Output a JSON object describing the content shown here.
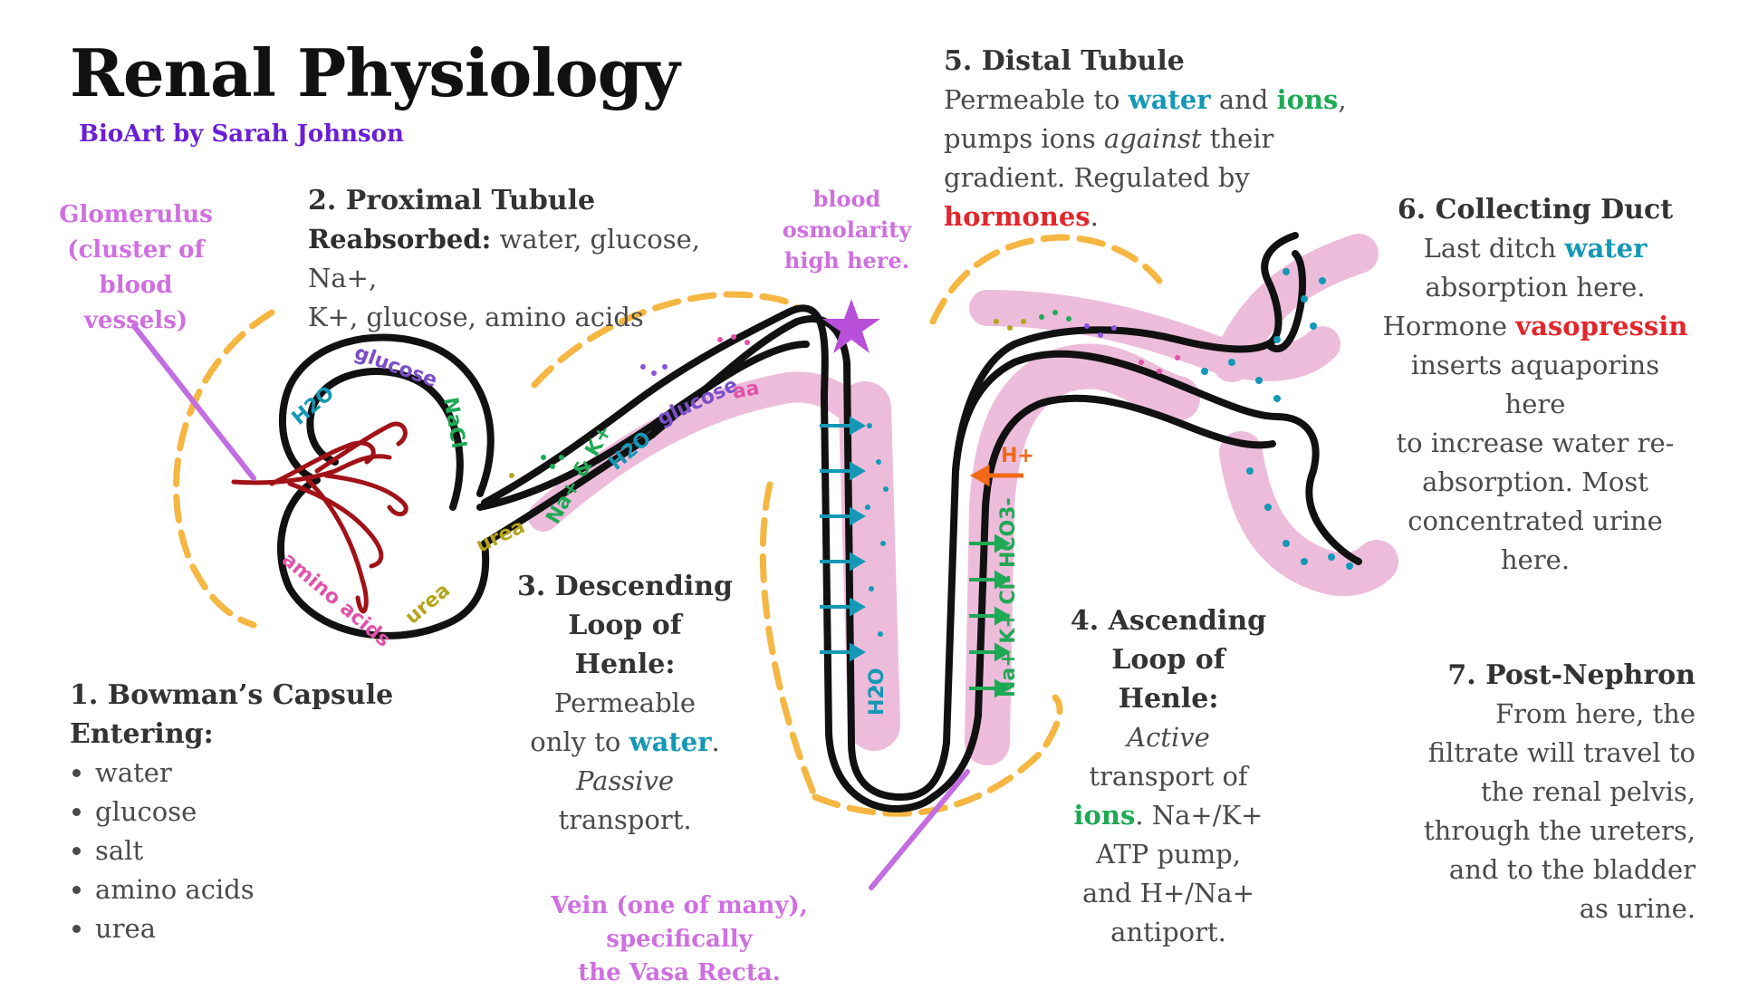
{
  "title": "Renal Physiology",
  "byline": "BioArt by Sarah Johnson",
  "glomerulus_label": [
    "Glomerulus",
    "(cluster of blood",
    "vessels)"
  ],
  "step1": {
    "heading": "1. Bowman’s Capsule",
    "subheading": "Entering:",
    "items": [
      "water",
      "glucose",
      "salt",
      "amino acids",
      "urea"
    ]
  },
  "step2": {
    "heading": "2. Proximal Tubule",
    "reabsorbed_label": "Reabsorbed:",
    "reabsorbed_text": "water, glucose, Na+,",
    "line2": "K+, glucose, amino acids"
  },
  "osmolarity_note": [
    "blood",
    "osmolarity",
    "high here."
  ],
  "step3": {
    "heading": [
      "3. Descending",
      "Loop of",
      "Henle:"
    ],
    "line1": "Permeable",
    "line2_pre": "only to",
    "line2_key": "water",
    "line2_post": ".",
    "line3": "Passive",
    "line4": "transport."
  },
  "step4": {
    "heading": [
      "4. Ascending",
      "Loop of",
      "Henle:"
    ],
    "line1": "Active",
    "line2": "transport of",
    "line3_key": "ions",
    "line3_post": ". Na+/K+",
    "line4": "ATP pump,",
    "line5": "and H+/Na+",
    "line6": "antiport."
  },
  "step5": {
    "heading": "5. Distal Tubule",
    "line1_pre": "Permeable to",
    "line1_key1": "water",
    "line1_mid": "and",
    "line1_key2": "ions",
    "line1_post": ",",
    "line2_pre": "pumps ions",
    "line2_em": "against",
    "line2_post": "their",
    "line3_pre": "gradient. Regulated by",
    "line3_key": "hormones",
    "line3_post": "."
  },
  "step6": {
    "heading": "6. Collecting Duct",
    "line1_pre": "Last ditch",
    "line1_key": "water",
    "line2": "absorption here.",
    "line3_pre": "Hormone",
    "line3_key": "vasopressin",
    "line4": "inserts aquaporins here",
    "line5": "to increase water re-",
    "line6": "absorption. Most",
    "line7": "concentrated urine here."
  },
  "step7": {
    "heading": "7. Post-Nephron",
    "lines": [
      "From here, the",
      "filtrate will travel to",
      "the renal pelvis,",
      "through the ureters,",
      "and to the bladder",
      "as urine."
    ]
  },
  "vein_label": [
    "Vein (one of many), specifically",
    "the Vasa Recta."
  ],
  "diagram_labels": {
    "h2o": "H2O",
    "glucose": "glucose",
    "nacl": "NaCl",
    "amino_acids": "amino acids",
    "urea": "urea",
    "nak": "Na+ & K+",
    "aa": "aa",
    "h_plus": "H+",
    "ions": "Na+ K+ Cl- HCO3-"
  },
  "colors": {
    "byline": "#6a1fd6",
    "callout_purple": "#cf6fe0",
    "water": "#1598b5",
    "ions": "#1fa955",
    "hormones": "#e3262c",
    "dashes": "#f5b642",
    "vessel": "#e7a6cf",
    "tubule": "#111111",
    "glomerulus_vessels": "#a11218"
  }
}
